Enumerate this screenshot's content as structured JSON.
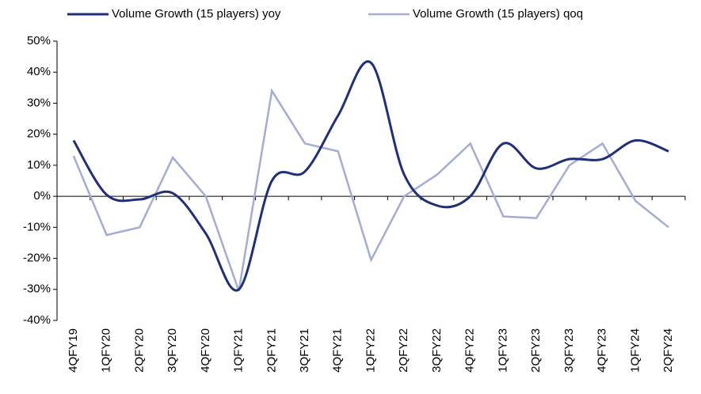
{
  "chart_data": {
    "type": "line",
    "categories": [
      "4QFY19",
      "1QFY20",
      "2QFY20",
      "3QFY20",
      "4QFY20",
      "1QFY21",
      "2QFY21",
      "3QFY21",
      "4QFY21",
      "1QFY22",
      "2QFY22",
      "3QFY22",
      "4QFY22",
      "1QFY23",
      "2QFY23",
      "3QFY23",
      "4QFY23",
      "1QFY24",
      "2QFY24"
    ],
    "series": [
      {
        "name": "Volume Growth (15 players) yoy",
        "color": "#1f2f7a",
        "smooth": true,
        "values": [
          18,
          0.5,
          -1,
          1,
          -12,
          -30,
          5,
          8,
          26,
          43,
          7,
          -3,
          0,
          17,
          9,
          12,
          12,
          18,
          14.5
        ]
      },
      {
        "name": "Volume Growth (15 players) qoq",
        "color": "#a3acd6",
        "smooth": false,
        "values": [
          13,
          -12.5,
          -10,
          12.5,
          0,
          -30.5,
          34,
          17,
          14.5,
          -20.5,
          0,
          7,
          17,
          -6.5,
          -7,
          10,
          17,
          -1.5,
          -10
        ]
      }
    ],
    "ylim": [
      -40,
      50
    ],
    "yticks": [
      {
        "value": -40,
        "label": "-40%"
      },
      {
        "value": -30,
        "label": "-30%"
      },
      {
        "value": -20,
        "label": "-20%"
      },
      {
        "value": -10,
        "label": "-10%"
      },
      {
        "value": 0,
        "label": "0%"
      },
      {
        "value": 10,
        "label": "10%"
      },
      {
        "value": 20,
        "label": "20%"
      },
      {
        "value": 30,
        "label": "30%"
      },
      {
        "value": 40,
        "label": "40%"
      },
      {
        "value": 50,
        "label": "50%"
      }
    ],
    "legend": "top"
  }
}
